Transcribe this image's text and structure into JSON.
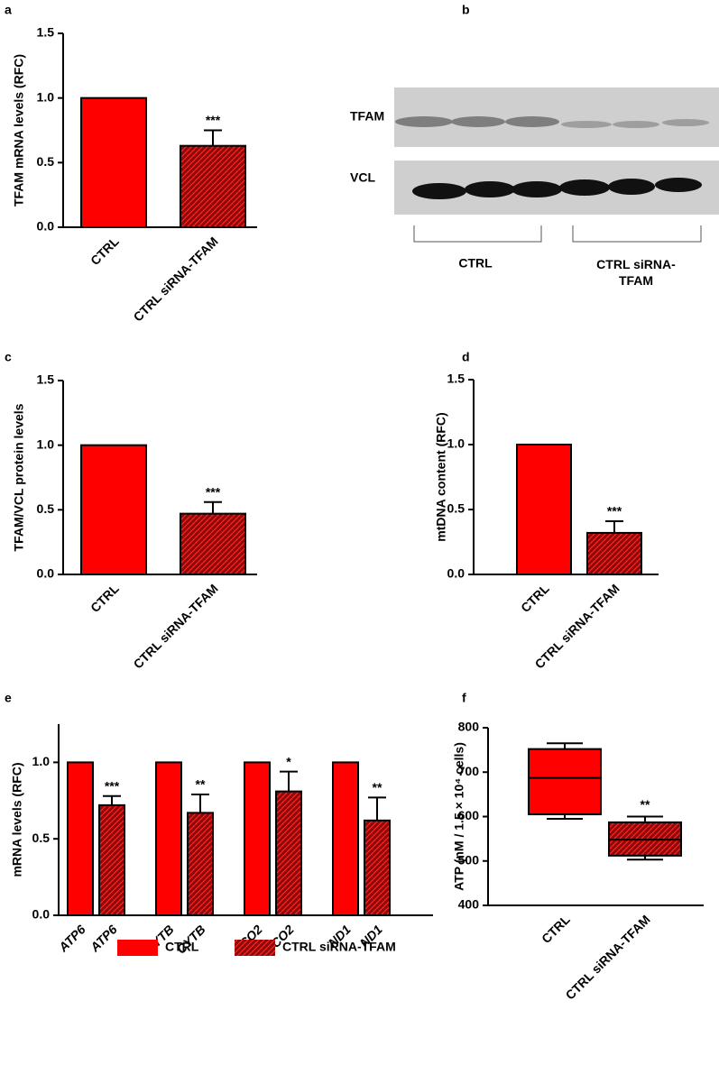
{
  "chart_data": [
    {
      "panel": "a",
      "type": "bar",
      "ylabel": "TFAM mRNA levels (RFC)",
      "categories": [
        "CTRL",
        "CTRL siRNA-TFAM"
      ],
      "values": [
        1.0,
        0.63
      ],
      "errors": [
        null,
        0.12
      ],
      "significance": [
        null,
        "***"
      ],
      "colors": [
        "#ff0000",
        "#8e0a0a"
      ],
      "hatch": [
        false,
        true
      ],
      "ylim": [
        0,
        1.5
      ],
      "yticks": [
        {
          "value": 0,
          "label": "0.0"
        },
        0.5,
        {
          "value": 1,
          "label": "1.0"
        },
        1.5
      ]
    },
    {
      "panel": "c",
      "type": "bar",
      "ylabel": "TFAM/VCL protein levels",
      "categories": [
        "CTRL",
        "CTRL siRNA-TFAM"
      ],
      "values": [
        1.0,
        0.47
      ],
      "errors": [
        null,
        0.09
      ],
      "significance": [
        null,
        "***"
      ],
      "colors": [
        "#ff0000",
        "#8e0a0a"
      ],
      "hatch": [
        false,
        true
      ],
      "ylim": [
        0,
        1.5
      ],
      "yticks": [
        {
          "value": 0,
          "label": "0.0"
        },
        0.5,
        {
          "value": 1,
          "label": "1.0"
        },
        1.5
      ]
    },
    {
      "panel": "d",
      "type": "bar",
      "ylabel": "mtDNA content (RFC)",
      "categories": [
        "CTRL",
        "CTRL siRNA-TFAM"
      ],
      "values": [
        1.0,
        0.32
      ],
      "errors": [
        null,
        0.09
      ],
      "significance": [
        null,
        "***"
      ],
      "colors": [
        "#ff0000",
        "#8e0a0a"
      ],
      "hatch": [
        false,
        true
      ],
      "ylim": [
        0,
        1.5
      ],
      "yticks": [
        {
          "value": 0,
          "label": "0.0"
        },
        0.5,
        {
          "value": 1,
          "label": "1.0"
        },
        1.5
      ]
    },
    {
      "panel": "e",
      "type": "grouped_bar",
      "ylabel": "mRNA  levels (RFC)",
      "categories": [
        "ATP6",
        "CYTB",
        "CO2",
        "ND1"
      ],
      "series": [
        {
          "name": "CTRL",
          "color": "#ff0000",
          "hatch": false,
          "values": [
            1.0,
            1.0,
            1.0,
            1.0
          ]
        },
        {
          "name": "CTRL siRNA-TFAM",
          "color": "#8e0a0a",
          "hatch": true,
          "values": [
            0.72,
            0.67,
            0.81,
            0.62
          ],
          "errors": [
            0.06,
            0.12,
            0.13,
            0.15
          ],
          "significance": [
            "***",
            "**",
            "*",
            "**"
          ]
        }
      ],
      "ylim": [
        0,
        1.25
      ],
      "yticks": [
        {
          "value": 0,
          "label": "0.0"
        },
        0.5,
        {
          "value": 1,
          "label": "1.0"
        }
      ]
    },
    {
      "panel": "f",
      "type": "box",
      "ylabel": "ATP (nM / 1.5 × 10⁴ cells)",
      "categories": [
        "CTRL",
        "CTRL siRNA-TFAM"
      ],
      "min": [
        595,
        503
      ],
      "q1": [
        605,
        512
      ],
      "median": [
        687,
        548
      ],
      "q3": [
        752,
        587
      ],
      "max": [
        765,
        600
      ],
      "significance": [
        null,
        "**"
      ],
      "colors": [
        "#ff0000",
        "#8e0a0a"
      ],
      "hatch": [
        false,
        true
      ],
      "ylim": [
        400,
        800
      ],
      "yticks": [
        400,
        500,
        600,
        700,
        800
      ]
    }
  ],
  "blot": {
    "panel": "b",
    "rows": [
      "TFAM",
      "VCL"
    ],
    "groups": [
      "CTRL",
      "CTRL siRNA-TFAM"
    ]
  }
}
